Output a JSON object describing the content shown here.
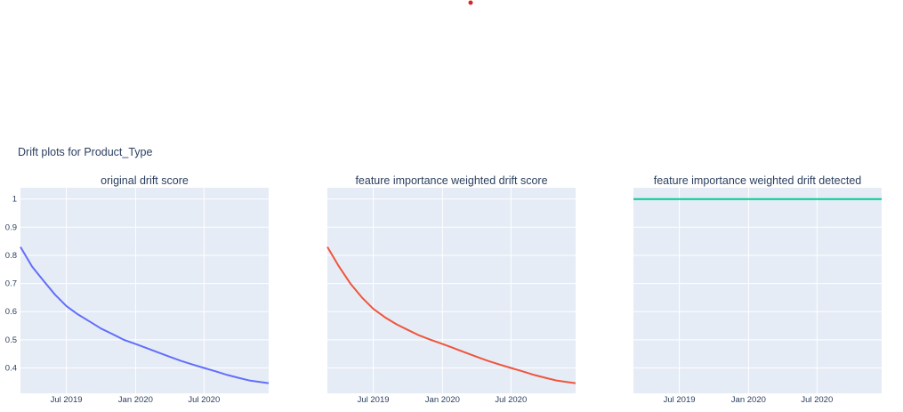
{
  "title": "Drift plots for Product_Type",
  "chart_data": [
    {
      "type": "line",
      "title": "original drift score",
      "x_ticks": [
        "Jul 2019",
        "Jan 2020",
        "Jul 2020"
      ],
      "y_ticks": [
        "0.4",
        "0.5",
        "0.6",
        "0.7",
        "0.8",
        "0.9",
        "1"
      ],
      "ylim": [
        0.31,
        1.04
      ],
      "grid": true,
      "color": "#636efa",
      "x": [
        "2019-03",
        "2019-04",
        "2019-05",
        "2019-06",
        "2019-07",
        "2019-08",
        "2019-09",
        "2019-10",
        "2019-11",
        "2019-12",
        "2020-01",
        "2020-02",
        "2020-03",
        "2020-04",
        "2020-05",
        "2020-06",
        "2020-07",
        "2020-08",
        "2020-09",
        "2020-10",
        "2020-11",
        "2020-12"
      ],
      "values": [
        0.83,
        0.76,
        0.71,
        0.66,
        0.62,
        0.59,
        0.565,
        0.54,
        0.52,
        0.5,
        0.485,
        0.47,
        0.455,
        0.44,
        0.425,
        0.412,
        0.4,
        0.388,
        0.375,
        0.365,
        0.355,
        0.346
      ]
    },
    {
      "type": "line",
      "title": "feature importance weighted drift score",
      "x_ticks": [
        "Jul 2019",
        "Jan 2020",
        "Jul 2020"
      ],
      "ylim": [
        0.31,
        1.04
      ],
      "grid": true,
      "color": "#ef553b",
      "x": [
        "2019-03",
        "2019-04",
        "2019-05",
        "2019-06",
        "2019-07",
        "2019-08",
        "2019-09",
        "2019-10",
        "2019-11",
        "2019-12",
        "2020-01",
        "2020-02",
        "2020-03",
        "2020-04",
        "2020-05",
        "2020-06",
        "2020-07",
        "2020-08",
        "2020-09",
        "2020-10",
        "2020-11",
        "2020-12"
      ],
      "values": [
        0.83,
        0.76,
        0.7,
        0.65,
        0.61,
        0.58,
        0.555,
        0.535,
        0.515,
        0.5,
        0.485,
        0.47,
        0.455,
        0.44,
        0.425,
        0.412,
        0.4,
        0.388,
        0.375,
        0.365,
        0.355,
        0.346
      ]
    },
    {
      "type": "line",
      "title": "feature importance weighted drift detected",
      "x_ticks": [
        "Jul 2019",
        "Jan 2020",
        "Jul 2020"
      ],
      "ylim": [
        0.31,
        1.04
      ],
      "grid": true,
      "color": "#00cc96",
      "x": [
        "2019-03",
        "2019-04",
        "2019-05",
        "2019-06",
        "2019-07",
        "2019-08",
        "2019-09",
        "2019-10",
        "2019-11",
        "2019-12",
        "2020-01",
        "2020-02",
        "2020-03",
        "2020-04",
        "2020-05",
        "2020-06",
        "2020-07",
        "2020-08",
        "2020-09",
        "2020-10",
        "2020-11",
        "2020-12"
      ],
      "values": [
        1,
        1,
        1,
        1,
        1,
        1,
        1,
        1,
        1,
        1,
        1,
        1,
        1,
        1,
        1,
        1,
        1,
        1,
        1,
        1,
        1,
        1
      ]
    }
  ]
}
